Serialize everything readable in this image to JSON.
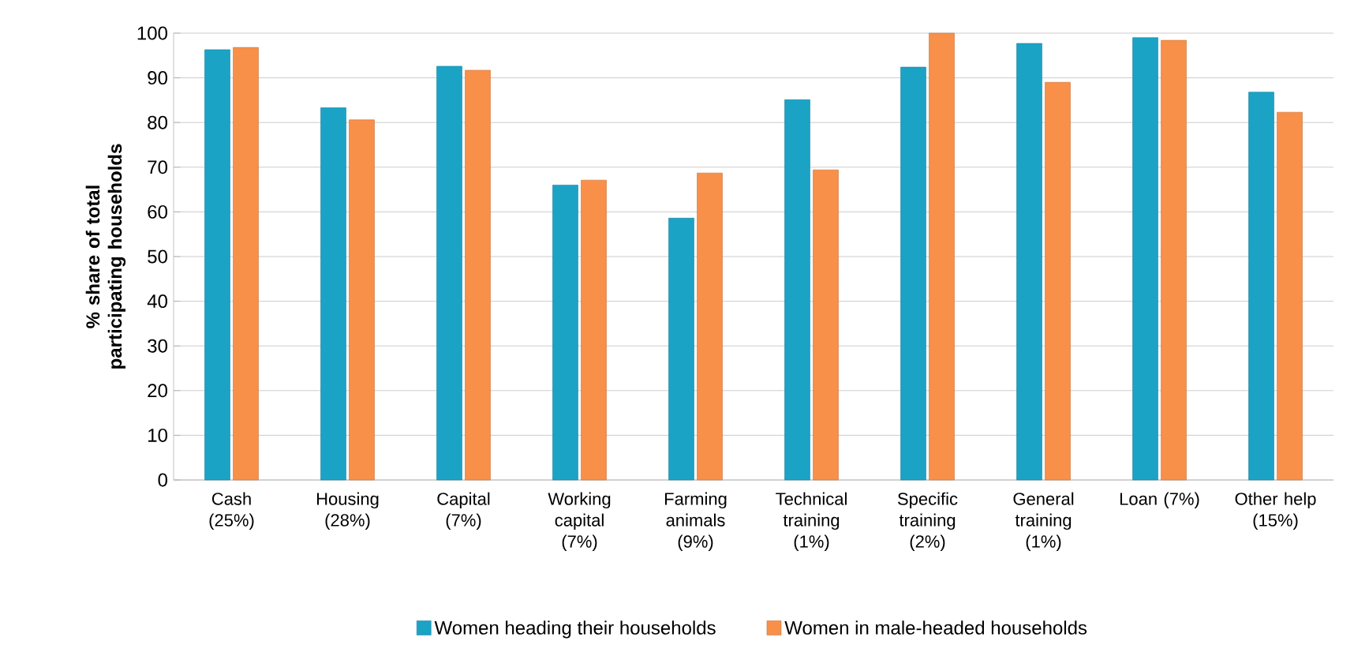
{
  "chart_data": {
    "type": "bar",
    "ylabel": "% share of total participating households",
    "categories": [
      "Cash (25%)",
      "Housing (28%)",
      "Capital (7%)",
      "Working capital (7%)",
      "Farming animals (9%)",
      "Technical training (1%)",
      "Specific training (2%)",
      "General training (1%)",
      "Loan (7%)",
      "Other help (15%)"
    ],
    "series": [
      {
        "name": "Women heading their households",
        "color": "#1ba3c6",
        "values": [
          96.3,
          83.3,
          92.6,
          66,
          58.6,
          85.1,
          92.4,
          97.7,
          99,
          86.8
        ]
      },
      {
        "name": "Women in male-headed households",
        "color": "#f8904a",
        "values": [
          96.8,
          80.6,
          91.7,
          67.1,
          68.7,
          69.4,
          100,
          89,
          98.4,
          82.3
        ]
      }
    ],
    "ylim": [
      0,
      100
    ],
    "yticks": [
      0,
      10,
      20,
      30,
      40,
      50,
      60,
      70,
      80,
      90,
      100
    ],
    "grid": "y",
    "legend": "bottom"
  }
}
